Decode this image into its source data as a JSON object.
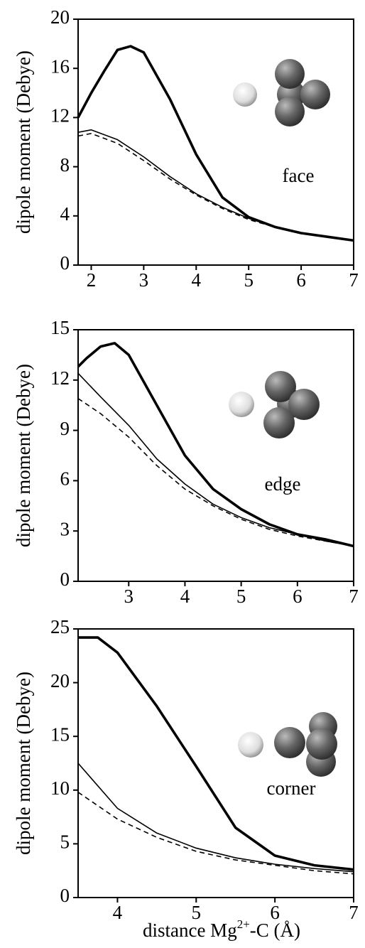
{
  "chart_data": [
    {
      "type": "line",
      "annotation": "face",
      "y_label": "dipole moment (Debye)",
      "xlim": [
        1.75,
        7
      ],
      "xticks": [
        2,
        3,
        4,
        5,
        6,
        7
      ],
      "ylim": [
        0,
        20
      ],
      "yticks": [
        0,
        4,
        8,
        12,
        16,
        20
      ],
      "series": [
        {
          "style": "thick",
          "color": "#000000",
          "x": [
            1.75,
            2,
            2.25,
            2.5,
            2.75,
            3,
            3.5,
            4,
            4.5,
            5,
            5.5,
            6,
            6.5,
            7
          ],
          "values": [
            12,
            14,
            15.8,
            17.5,
            17.8,
            17.3,
            13.5,
            9,
            5.5,
            3.9,
            3.1,
            2.6,
            2.3,
            2.0
          ]
        },
        {
          "style": "thin",
          "color": "#000000",
          "x": [
            1.75,
            2,
            2.5,
            3,
            3.5,
            4,
            4.5,
            5,
            5.5,
            6,
            6.5,
            7
          ],
          "values": [
            10.8,
            11,
            10.2,
            8.8,
            7.2,
            5.8,
            4.7,
            3.8,
            3.1,
            2.6,
            2.3,
            2.0
          ]
        },
        {
          "style": "dashed",
          "color": "#000000",
          "x": [
            1.75,
            2,
            2.5,
            3,
            3.5,
            4,
            4.5,
            5,
            5.5,
            6,
            6.5,
            7
          ],
          "values": [
            10.5,
            10.7,
            9.9,
            8.5,
            7.0,
            5.7,
            4.6,
            3.7,
            3.1,
            2.6,
            2.3,
            2.0
          ]
        }
      ]
    },
    {
      "type": "line",
      "annotation": "edge",
      "y_label": "dipole moment (Debye)",
      "xlim": [
        2.1,
        7
      ],
      "xticks": [
        3,
        4,
        5,
        6,
        7
      ],
      "ylim": [
        0,
        15
      ],
      "yticks": [
        0,
        3,
        6,
        9,
        12,
        15
      ],
      "series": [
        {
          "style": "thick",
          "color": "#000000",
          "x": [
            2.1,
            2.25,
            2.5,
            2.75,
            3,
            3.5,
            4,
            4.5,
            5,
            5.5,
            6,
            6.5,
            7
          ],
          "values": [
            12.8,
            13.3,
            14.0,
            14.2,
            13.5,
            10.5,
            7.5,
            5.5,
            4.3,
            3.4,
            2.8,
            2.5,
            2.1
          ]
        },
        {
          "style": "thin",
          "color": "#000000",
          "x": [
            2.1,
            2.5,
            3,
            3.5,
            4,
            4.5,
            5,
            5.5,
            6,
            6.5,
            7
          ],
          "values": [
            12.4,
            11.0,
            9.3,
            7.3,
            5.8,
            4.6,
            3.8,
            3.2,
            2.8,
            2.4,
            2.1
          ]
        },
        {
          "style": "dashed",
          "color": "#000000",
          "x": [
            2.1,
            2.5,
            3,
            3.5,
            4,
            4.5,
            5,
            5.5,
            6,
            6.5,
            7
          ],
          "values": [
            10.9,
            10.0,
            8.6,
            6.9,
            5.5,
            4.5,
            3.7,
            3.1,
            2.7,
            2.4,
            2.1
          ]
        }
      ]
    },
    {
      "type": "line",
      "annotation": "corner",
      "y_label": "dipole moment (Debye)",
      "x_label": "distance Mg",
      "x_label_sup": "2+",
      "x_label_end": "-C (Å)",
      "xlim": [
        3.5,
        7
      ],
      "xticks": [
        4,
        5,
        6,
        7
      ],
      "ylim": [
        0,
        25
      ],
      "yticks": [
        0,
        5,
        10,
        15,
        20,
        25
      ],
      "series": [
        {
          "style": "thick",
          "color": "#000000",
          "x": [
            3.5,
            3.75,
            4,
            4.5,
            5,
            5.5,
            6,
            6.5,
            7
          ],
          "values": [
            24.2,
            24.2,
            22.8,
            17.8,
            12.2,
            6.5,
            3.9,
            3.0,
            2.6
          ]
        },
        {
          "style": "thin",
          "color": "#000000",
          "x": [
            3.5,
            4,
            4.5,
            5,
            5.5,
            6,
            6.5,
            7
          ],
          "values": [
            12.5,
            8.3,
            6.0,
            4.6,
            3.7,
            3.1,
            2.7,
            2.4
          ]
        },
        {
          "style": "dashed",
          "color": "#000000",
          "x": [
            3.5,
            4,
            4.5,
            5,
            5.5,
            6,
            6.5,
            7
          ],
          "values": [
            9.8,
            7.3,
            5.6,
            4.3,
            3.5,
            3.0,
            2.5,
            2.2
          ]
        }
      ]
    }
  ]
}
